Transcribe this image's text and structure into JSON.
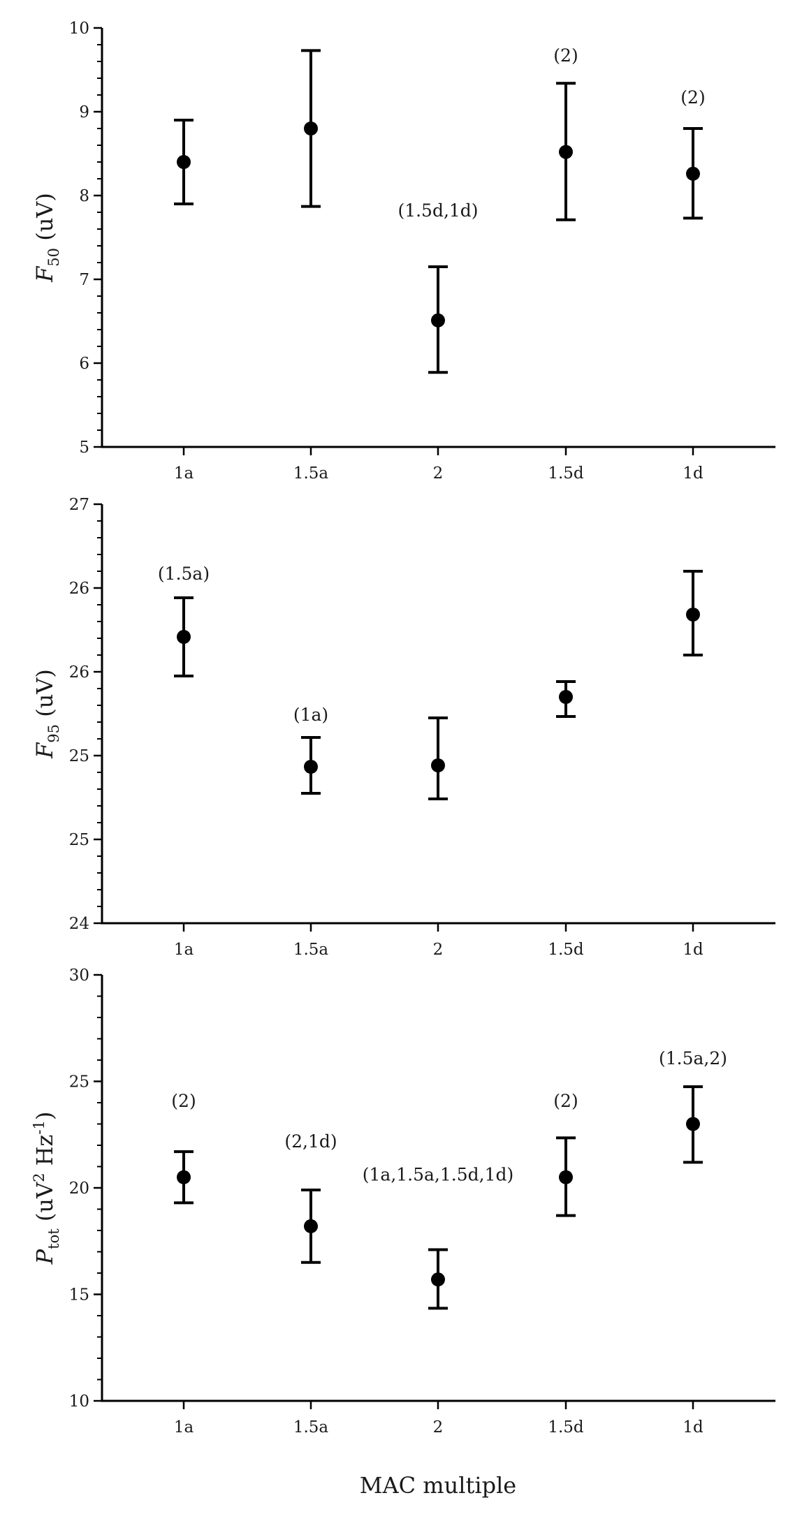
{
  "chart_data": [
    {
      "type": "scatter",
      "ylabel_main": "F",
      "ylabel_sub": "50",
      "ylabel_unit": " (uV)",
      "categories": [
        "1a",
        "1.5a",
        "2",
        "1.5d",
        "1d"
      ],
      "ylim": [
        5,
        10
      ],
      "yticks": [
        "5",
        "6",
        "7",
        "8",
        "9",
        "10"
      ],
      "yminor": 4,
      "values": [
        8.4,
        8.8,
        6.51,
        8.52,
        8.26
      ],
      "err_low": [
        7.9,
        7.87,
        5.89,
        7.71,
        7.73
      ],
      "err_high": [
        8.9,
        9.73,
        7.15,
        9.34,
        8.8
      ],
      "annotations": [
        {
          "cat": 2,
          "text": "(1.5d,1d)",
          "y": 7.75
        },
        {
          "cat": 3,
          "text": "(2)",
          "y": 9.6
        },
        {
          "cat": 4,
          "text": "(2)",
          "y": 9.1
        }
      ]
    },
    {
      "type": "scatter",
      "ylabel_main": "F",
      "ylabel_sub": "95",
      "ylabel_unit": " (uV)",
      "categories": [
        "1a",
        "1.5a",
        "2",
        "1.5d",
        "1d"
      ],
      "ylim": [
        24,
        27
      ],
      "yticks": [
        "24",
        "25",
        "25",
        "26",
        "26",
        "27"
      ],
      "yminor": 4,
      "values": [
        26.05,
        25.12,
        25.13,
        25.62,
        26.21
      ],
      "err_low": [
        25.77,
        24.93,
        24.89,
        25.48,
        25.92
      ],
      "err_high": [
        26.33,
        25.33,
        25.47,
        25.73,
        26.52
      ],
      "annotations": [
        {
          "cat": 0,
          "text": "(1.5a)",
          "y": 26.46
        },
        {
          "cat": 1,
          "text": "(1a)",
          "y": 25.45
        }
      ]
    },
    {
      "type": "scatter",
      "ylabel_main": "P",
      "ylabel_sub": "tot",
      "ylabel_unit_pre": " (uV",
      "ylabel_unit_sup1": "2",
      "ylabel_unit_mid": " Hz",
      "ylabel_unit_sup2": "-1",
      "ylabel_unit_post": ")",
      "categories": [
        "1a",
        "1.5a",
        "2",
        "1.5d",
        "1d"
      ],
      "ylim": [
        10,
        30
      ],
      "yticks": [
        "10",
        "15",
        "20",
        "25",
        "30"
      ],
      "yminor": 4,
      "values": [
        20.5,
        18.2,
        15.7,
        20.5,
        23.0
      ],
      "err_low": [
        19.3,
        16.5,
        14.35,
        18.7,
        21.2
      ],
      "err_high": [
        21.7,
        19.9,
        17.1,
        22.35,
        24.75
      ],
      "annotations": [
        {
          "cat": 0,
          "text": "(2)",
          "y": 23.8
        },
        {
          "cat": 1,
          "text": "(2,1d)",
          "y": 21.9
        },
        {
          "cat": 2,
          "text": "(1a,1.5a,1.5d,1d)",
          "y": 20.35
        },
        {
          "cat": 3,
          "text": "(2)",
          "y": 23.8
        },
        {
          "cat": 4,
          "text": "(1.5a,2)",
          "y": 25.8
        }
      ]
    }
  ],
  "xlabel": "MAC multiple"
}
